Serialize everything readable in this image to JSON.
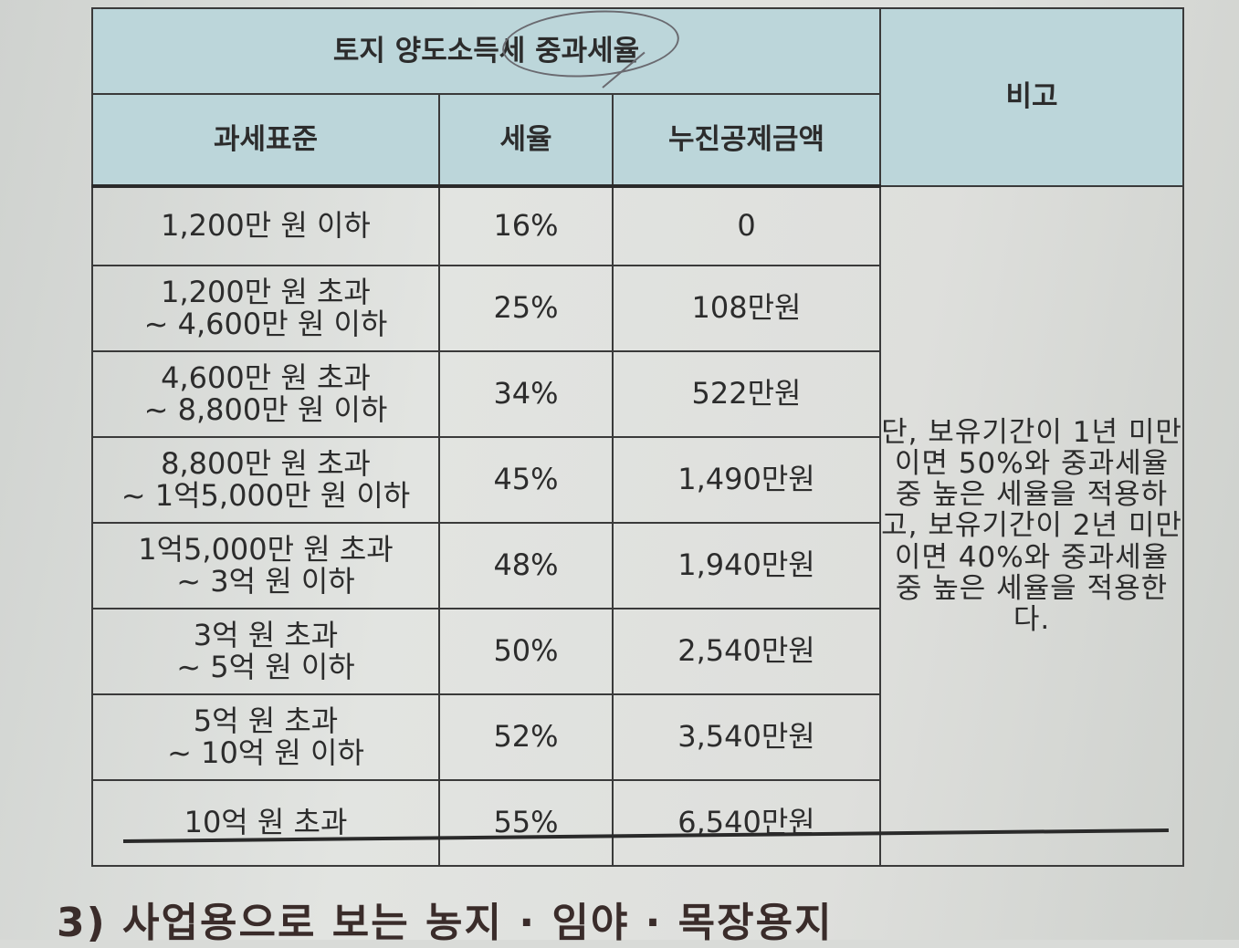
{
  "table": {
    "title": "토지 양도소득세 중과세율",
    "note_header": "비고",
    "col_headers": [
      "과세표준",
      "세율",
      "누진공제금액"
    ],
    "rows": [
      {
        "base": "1,200만 원 이하",
        "rate": "16%",
        "deduction": "0"
      },
      {
        "base": "1,200만 원 초과\n~ 4,600만 원 이하",
        "rate": "25%",
        "deduction": "108만원"
      },
      {
        "base": "4,600만 원 초과\n~ 8,800만 원 이하",
        "rate": "34%",
        "deduction": "522만원"
      },
      {
        "base": "8,800만 원 초과\n~ 1억5,000만 원 이하",
        "rate": "45%",
        "deduction": "1,490만원"
      },
      {
        "base": "1억5,000만 원 초과\n~ 3억 원 이하",
        "rate": "48%",
        "deduction": "1,940만원"
      },
      {
        "base": "3억 원 초과\n~ 5억 원 이하",
        "rate": "50%",
        "deduction": "2,540만원"
      },
      {
        "base": "5억 원 초과\n~ 10억 원 이하",
        "rate": "52%",
        "deduction": "3,540만원"
      },
      {
        "base": "10억 원 초과",
        "rate": "55%",
        "deduction": "6,540만원"
      }
    ],
    "note": "단, 보유기간이 1년 미만이면 50%와 중과세율 중 높은 세율을 적용하고, 보유기간이 2년 미만이면 40%와 중과세율 중 높은 세율을 적용한다."
  },
  "section_heading": "3) 사업용으로 보는 농지 · 임야 · 목장용지"
}
